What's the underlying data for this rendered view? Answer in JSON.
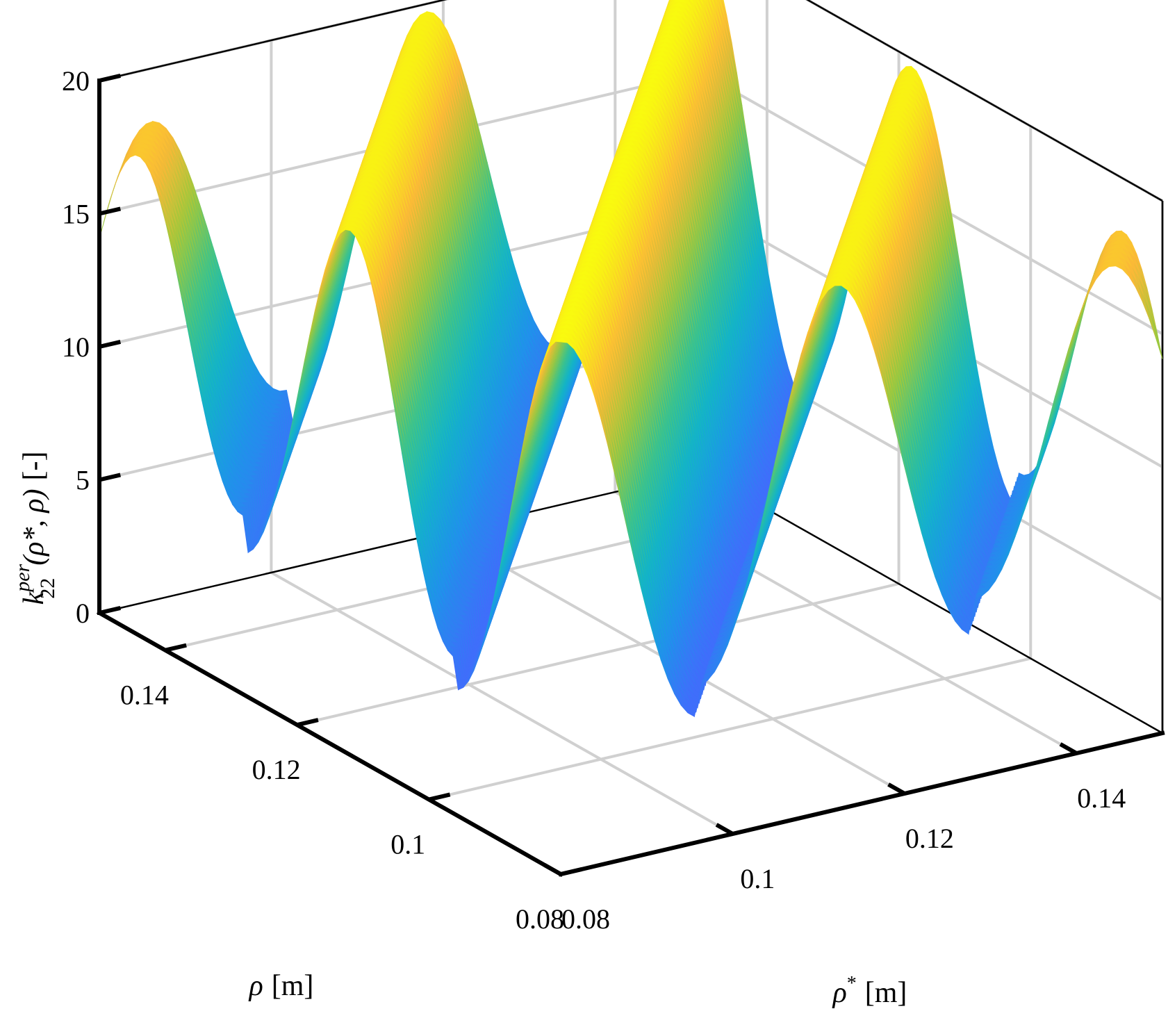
{
  "chart_data": {
    "type": "surface",
    "title": "",
    "xlabel": {
      "symbol": "ρ",
      "sup": "*",
      "unit": "[m]"
    },
    "ylabel": {
      "symbol": "ρ",
      "unit": "[m]"
    },
    "zlabel": {
      "k": "k",
      "sub": "22",
      "sup": "per",
      "args": "(ρ*, ρ)",
      "unit": "[-]"
    },
    "xlim": [
      0.08,
      0.15
    ],
    "ylim": [
      0.08,
      0.15
    ],
    "zlim": [
      0,
      20
    ],
    "x_ticks": [
      "0.08",
      "0.1",
      "0.12",
      "0.14"
    ],
    "y_ticks": [
      "0.08",
      "0.1",
      "0.12",
      "0.14"
    ],
    "z_ticks": [
      "0",
      "5",
      "10",
      "15",
      "20"
    ],
    "grid": true,
    "colormap": "parula",
    "ridges": [
      {
        "offset": -0.064,
        "peak": 18.0,
        "trough": 2.6
      },
      {
        "offset": -0.032,
        "peak": 19.7,
        "trough": 1.2
      },
      {
        "offset": 0.0,
        "peak": 20.0,
        "trough": 0.0
      },
      {
        "offset": 0.032,
        "peak": 19.7,
        "trough": 1.2
      },
      {
        "offset": 0.064,
        "peak": 18.0,
        "trough": 2.6
      }
    ],
    "colors": {
      "low": "#3E26A8",
      "mid": "#20B2AA",
      "high": "#F9FB0E"
    }
  }
}
